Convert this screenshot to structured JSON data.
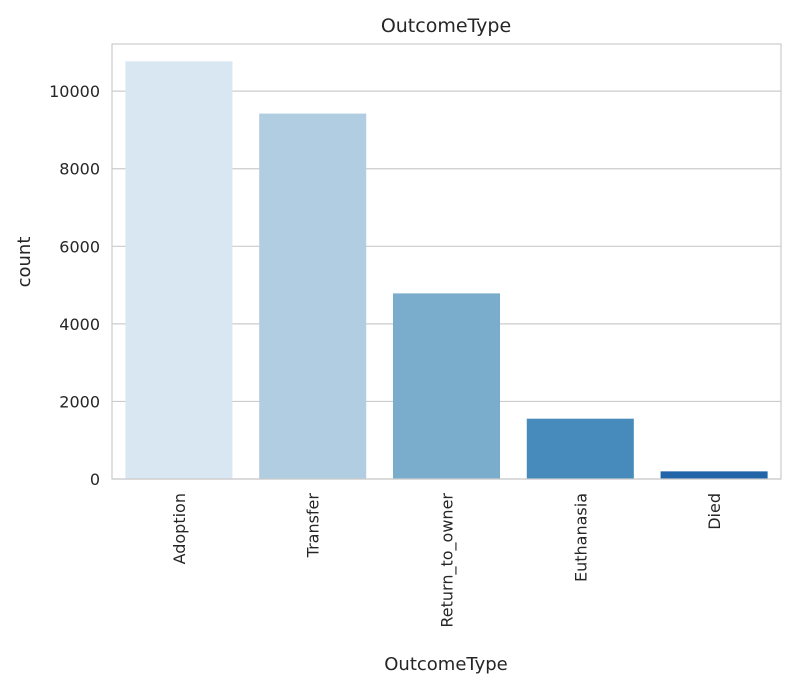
{
  "chart_data": {
    "type": "bar",
    "title": "OutcomeType",
    "xlabel": "OutcomeType",
    "ylabel": "count",
    "categories": [
      "Adoption",
      "Transfer",
      "Return_to_owner",
      "Euthanasia",
      "Died"
    ],
    "values": [
      10769,
      9422,
      4786,
      1555,
      197
    ],
    "colors": [
      "#d9e7f3",
      "#b0cde1",
      "#79adcb",
      "#468bbc",
      "#2165a8"
    ],
    "ylim": [
      0,
      11216
    ],
    "yticks": [
      0,
      2000,
      4000,
      6000,
      8000,
      10000
    ],
    "grid": "y",
    "legend": "none"
  }
}
